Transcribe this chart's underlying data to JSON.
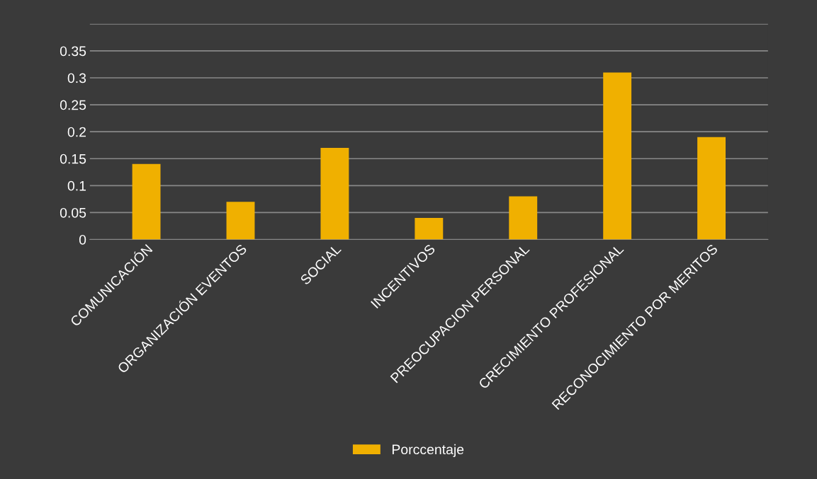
{
  "chart_data": {
    "type": "bar",
    "categories": [
      "COMUNICACIÓN",
      "ORGANIZACIÓN EVENTOS",
      "SOCIAL",
      "INCENTIVOS",
      "PREOCUPACION PERSONAL",
      "CRECIMIENTO PROFESIONAL",
      "RECONOCIMIENTO POR MERITOS"
    ],
    "series": [
      {
        "name": "Porccentaje",
        "color": "#f0b000",
        "values": [
          0.14,
          0.07,
          0.17,
          0.04,
          0.08,
          0.31,
          0.19
        ]
      }
    ],
    "ylim": [
      0,
      0.4
    ],
    "yticks": [
      0,
      0.05,
      0.1,
      0.15,
      0.2,
      0.25,
      0.3,
      0.35,
      {
        "value": 0.4,
        "label": null
      }
    ],
    "grid": "y",
    "legend": "bottom"
  }
}
